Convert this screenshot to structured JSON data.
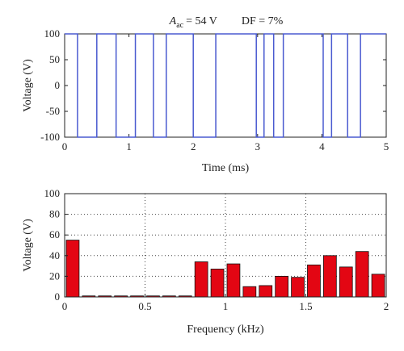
{
  "chart_data": [
    {
      "type": "line",
      "title": {
        "symbol": "A",
        "symbol_sub": "ac",
        "amplitude_text": "= 54 V",
        "df_text": "DF = 7%"
      },
      "xlabel": "Time (ms)",
      "ylabel": "Voltage (V)",
      "xlim": [
        0,
        5
      ],
      "ylim": [
        -100,
        100
      ],
      "xticks": [
        0,
        1,
        2,
        3,
        4,
        5
      ],
      "yticks": [
        -100,
        -50,
        0,
        50,
        100
      ],
      "grid": false,
      "line_color": "#4a5ad0",
      "series": [
        {
          "x": [
            0,
            0.2,
            0.2,
            0.5,
            0.5,
            0.8,
            0.8,
            1.1,
            1.1,
            1.38,
            1.38,
            1.58,
            1.58,
            2.0,
            2.0,
            2.35,
            2.35,
            2.98,
            2.98,
            3.1,
            3.1,
            3.25,
            3.25,
            3.4,
            3.4,
            4.02,
            4.02,
            4.15,
            4.15,
            4.4,
            4.4,
            4.6,
            4.6,
            5.0
          ],
          "y": [
            100,
            100,
            -100,
            -100,
            100,
            100,
            -100,
            -100,
            100,
            100,
            -100,
            -100,
            100,
            100,
            -100,
            -100,
            100,
            100,
            -100,
            -100,
            100,
            100,
            -100,
            -100,
            100,
            100,
            -100,
            -100,
            100,
            100,
            -100,
            -100,
            100,
            100
          ]
        }
      ]
    },
    {
      "type": "bar",
      "xlabel": "Frequency (kHz)",
      "ylabel": "Voltage (V)",
      "xlim": [
        0,
        2
      ],
      "ylim": [
        0,
        100
      ],
      "xticks": [
        0,
        0.5,
        1,
        1.5,
        2
      ],
      "yticks": [
        0,
        20,
        40,
        60,
        80,
        100
      ],
      "grid": true,
      "bar_color": "#e30613",
      "bar_width": 0.08,
      "x": [
        0.05,
        0.15,
        0.25,
        0.35,
        0.45,
        0.55,
        0.65,
        0.75,
        0.85,
        0.95,
        1.05,
        1.15,
        1.25,
        1.35,
        1.45,
        1.55,
        1.65,
        1.75,
        1.85,
        1.95
      ],
      "values": [
        55,
        1,
        1,
        1,
        1,
        1,
        1,
        1,
        34,
        27,
        32,
        10,
        11,
        20,
        19,
        31,
        40,
        29,
        44,
        22
      ]
    }
  ]
}
